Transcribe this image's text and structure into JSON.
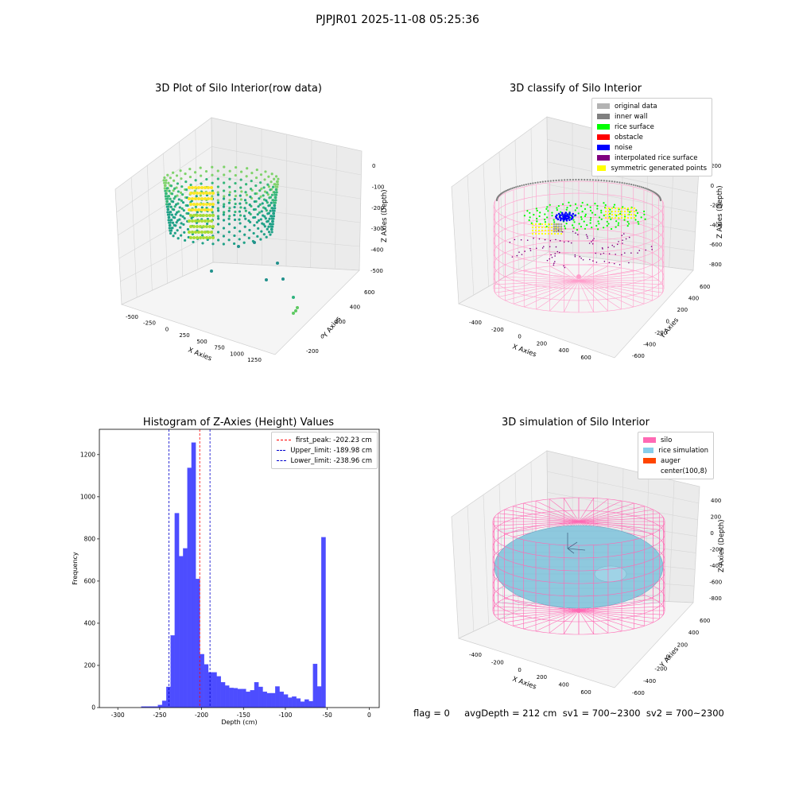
{
  "suptitle": "PJPJR01 2025-11-08 05:25:36",
  "footer": "flag = 0     avgDepth = 212 cm  sv1 = 700~2300  sv2 = 700~2300",
  "chart_data": [
    {
      "type": "scatter3d",
      "title": "3D Plot of Silo Interior(row data)",
      "xlabel": "X Axies",
      "ylabel": "Y Axies",
      "zlabel": "Z Axies (Depth)",
      "x_ticks": [
        "-500",
        "-250",
        "0",
        "250",
        "500",
        "750",
        "1000",
        "1250"
      ],
      "y_ticks": [
        "-200",
        "0",
        "200",
        "400",
        "600"
      ],
      "z_ticks": [
        "0",
        "-100",
        "-200",
        "-300",
        "-400",
        "-500"
      ],
      "colormap": "viridis"
    },
    {
      "type": "scatter3d",
      "title": "3D classify of Silo Interior",
      "xlabel": "X Axies",
      "ylabel": "Y Axies",
      "zlabel": "Z Axies (Depth)",
      "x_ticks": [
        "-400",
        "-200",
        "0",
        "200",
        "400",
        "600"
      ],
      "y_ticks": [
        "-600",
        "-400",
        "-200",
        "0",
        "200",
        "400",
        "600"
      ],
      "z_ticks": [
        "200",
        "0",
        "-200",
        "-400",
        "-600",
        "-800"
      ],
      "legend": [
        {
          "label": "original data",
          "color": "#b3b3b3"
        },
        {
          "label": "inner wall",
          "color": "#808080"
        },
        {
          "label": "rice surface",
          "color": "#00ff00"
        },
        {
          "label": "obstacle",
          "color": "#ff0000"
        },
        {
          "label": "noise",
          "color": "#0000ff"
        },
        {
          "label": "interpolated rice surface",
          "color": "#800080"
        },
        {
          "label": "symmetric generated points",
          "color": "#ffff00"
        }
      ],
      "silo_wire_color": "#ff9ecb"
    },
    {
      "type": "histogram",
      "title": "Histogram of Z-Axies (Height) Values",
      "xlabel": "Depth (cm)",
      "ylabel": "Frequency",
      "xlim": [
        -322,
        12
      ],
      "ylim": [
        0,
        1320
      ],
      "x_ticks": [
        -300,
        -250,
        -200,
        -150,
        -100,
        -50,
        0
      ],
      "y_ticks": [
        0,
        200,
        400,
        600,
        800,
        1000,
        1200
      ],
      "bar_color": "#4d4dff",
      "bin_width": 5,
      "bins": [
        {
          "x": -272,
          "v": 5
        },
        {
          "x": -267,
          "v": 5
        },
        {
          "x": -262,
          "v": 5
        },
        {
          "x": -257,
          "v": 5
        },
        {
          "x": -252,
          "v": 12
        },
        {
          "x": -247,
          "v": 32
        },
        {
          "x": -242,
          "v": 98
        },
        {
          "x": -237,
          "v": 342
        },
        {
          "x": -232,
          "v": 922
        },
        {
          "x": -227,
          "v": 718
        },
        {
          "x": -222,
          "v": 755
        },
        {
          "x": -217,
          "v": 1137
        },
        {
          "x": -212,
          "v": 1257
        },
        {
          "x": -207,
          "v": 610
        },
        {
          "x": -202,
          "v": 253
        },
        {
          "x": -197,
          "v": 205
        },
        {
          "x": -192,
          "v": 167
        },
        {
          "x": -187,
          "v": 167
        },
        {
          "x": -182,
          "v": 148
        },
        {
          "x": -177,
          "v": 120
        },
        {
          "x": -172,
          "v": 104
        },
        {
          "x": -167,
          "v": 93
        },
        {
          "x": -162,
          "v": 92
        },
        {
          "x": -157,
          "v": 88
        },
        {
          "x": -152,
          "v": 88
        },
        {
          "x": -147,
          "v": 75
        },
        {
          "x": -142,
          "v": 82
        },
        {
          "x": -137,
          "v": 120
        },
        {
          "x": -132,
          "v": 98
        },
        {
          "x": -127,
          "v": 75
        },
        {
          "x": -122,
          "v": 68
        },
        {
          "x": -117,
          "v": 68
        },
        {
          "x": -112,
          "v": 100
        },
        {
          "x": -107,
          "v": 75
        },
        {
          "x": -102,
          "v": 62
        },
        {
          "x": -97,
          "v": 47
        },
        {
          "x": -92,
          "v": 52
        },
        {
          "x": -87,
          "v": 43
        },
        {
          "x": -82,
          "v": 28
        },
        {
          "x": -77,
          "v": 38
        },
        {
          "x": -72,
          "v": 30
        },
        {
          "x": -67,
          "v": 207
        },
        {
          "x": -62,
          "v": 100
        },
        {
          "x": -57,
          "v": 808
        }
      ],
      "vlines": [
        {
          "label": "first_peak: -202.23 cm",
          "x": -202.23,
          "color": "#ff0000"
        },
        {
          "label": "Upper_limit: -189.98 cm",
          "x": -189.98,
          "color": "#0000cc"
        },
        {
          "label": "Lower_limit: -238.96 cm",
          "x": -238.96,
          "color": "#0000cc"
        }
      ]
    },
    {
      "type": "surface3d",
      "title": "3D simulation of Silo Interior",
      "xlabel": "X Axies",
      "ylabel": "Y Axies",
      "zlabel": "Z Axies (Depth)",
      "x_ticks": [
        "-400",
        "-200",
        "0",
        "200",
        "400",
        "600"
      ],
      "y_ticks": [
        "-600",
        "-400",
        "-200",
        "0",
        "200",
        "400",
        "600"
      ],
      "z_ticks": [
        "400",
        "200",
        "0",
        "-200",
        "-400",
        "-600",
        "-800"
      ],
      "legend": [
        {
          "label": "silo",
          "color": "#ff69b4"
        },
        {
          "label": "rice simulation",
          "color": "#87ceeb"
        },
        {
          "label": "auger",
          "color": "#ff4500"
        },
        {
          "label": "center(100,8)",
          "color": ""
        }
      ]
    }
  ]
}
